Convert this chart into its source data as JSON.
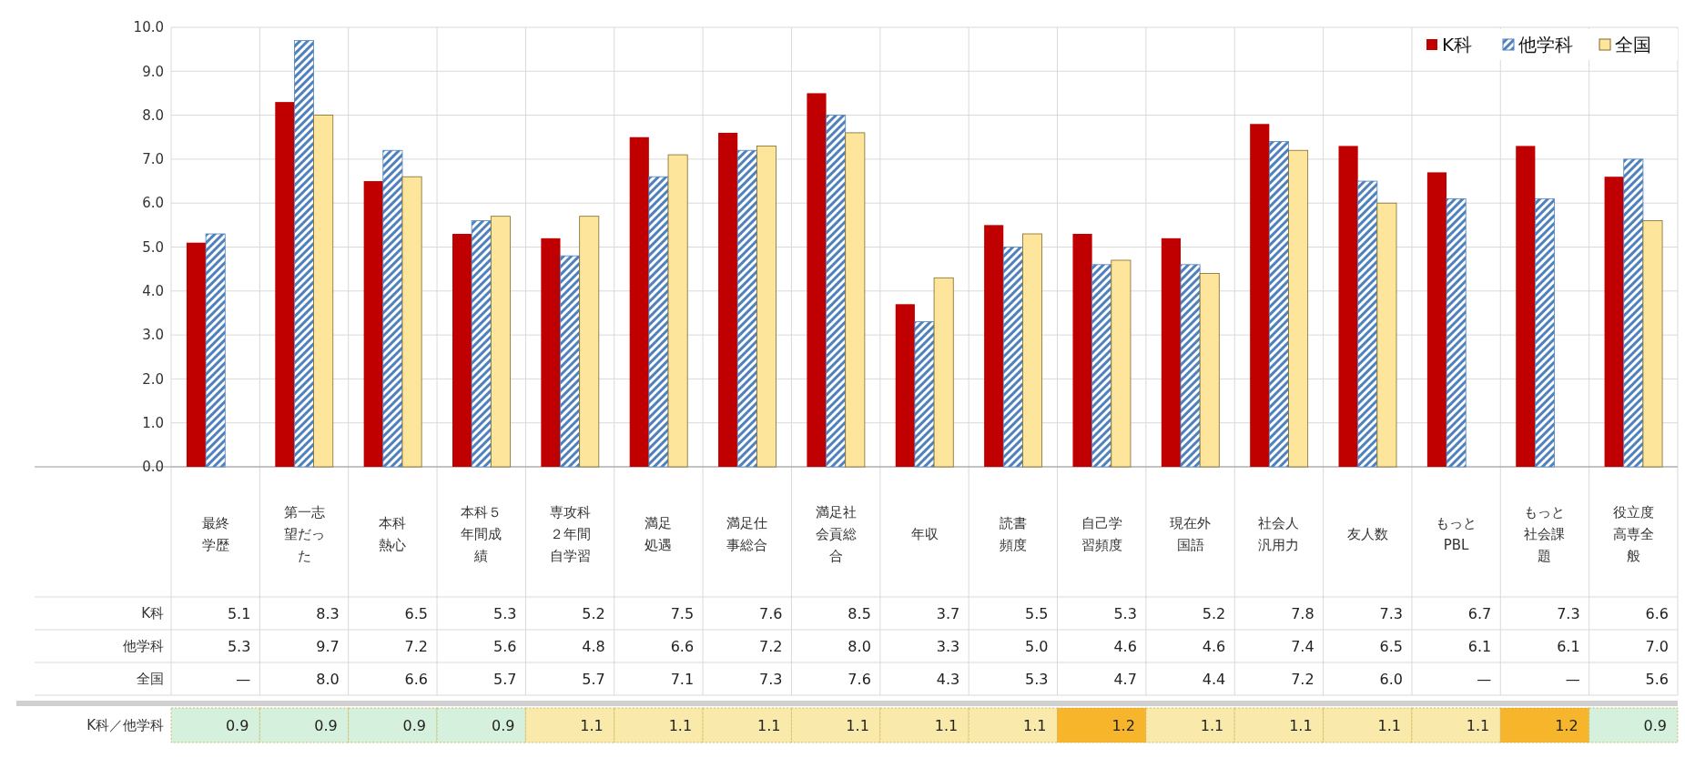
{
  "chart_data": [
    {
      "type": "bar",
      "categories": [
        "最終学歴",
        "第一志望だった",
        "本科熱心",
        "本科５年間成績",
        "専攻科２年間自学習",
        "満足処遇",
        "満足仕事総合",
        "満足社会貢総合",
        "年収",
        "読書頻度",
        "自己学習頻度",
        "現在外国語",
        "社会人汎用力",
        "友人数",
        "もっとPBL",
        "もっと社会課題",
        "役立度高専全般"
      ],
      "series": [
        {
          "name": "K科",
          "color": "#c00000",
          "values": [
            5.1,
            8.3,
            6.5,
            5.3,
            5.2,
            7.5,
            7.6,
            8.5,
            3.7,
            5.5,
            5.3,
            5.2,
            7.8,
            7.3,
            6.7,
            7.3,
            6.6
          ],
          "value_labels": [
            "5.1",
            "8.3",
            "6.5",
            "5.3",
            "5.2",
            "7.5",
            "7.6",
            "8.5",
            "3.7",
            "5.5",
            "5.3",
            "5.2",
            "7.8",
            "7.3",
            "6.7",
            "7.3",
            "6.6"
          ]
        },
        {
          "name": "他学科",
          "color": "#4f81bd",
          "values": [
            5.3,
            9.7,
            7.2,
            5.6,
            4.8,
            6.6,
            7.2,
            8.0,
            3.3,
            5.0,
            4.6,
            4.6,
            7.4,
            6.5,
            6.1,
            6.1,
            7.0
          ],
          "value_labels": [
            "5.3",
            "9.7",
            "7.2",
            "5.6",
            "4.8",
            "6.6",
            "7.2",
            "8.0",
            "3.3",
            "5.0",
            "4.6",
            "4.6",
            "7.4",
            "6.5",
            "6.1",
            "6.1",
            "7.0"
          ]
        },
        {
          "name": "全国",
          "color": "#fde59c",
          "values": [
            null,
            8.0,
            6.6,
            5.7,
            5.7,
            7.1,
            7.3,
            7.6,
            4.3,
            5.3,
            4.7,
            4.4,
            7.2,
            6.0,
            null,
            null,
            5.6
          ],
          "value_labels": [
            "—",
            "8.0",
            "6.6",
            "5.7",
            "5.7",
            "7.1",
            "7.3",
            "7.6",
            "4.3",
            "5.3",
            "4.7",
            "4.4",
            "7.2",
            "6.0",
            "—",
            "—",
            "5.6"
          ]
        }
      ],
      "ylim": [
        0,
        10
      ],
      "yticks": [
        {
          "value": 0,
          "label": "0.0"
        },
        {
          "value": 1,
          "label": "1.0"
        },
        {
          "value": 2,
          "label": "2.0"
        },
        {
          "value": 3,
          "label": "3.0"
        },
        {
          "value": 4,
          "label": "4.0"
        },
        {
          "value": 5,
          "label": "5.0"
        },
        {
          "value": 6,
          "label": "6.0"
        },
        {
          "value": 7,
          "label": "7.0"
        },
        {
          "value": 8,
          "label": "8.0"
        },
        {
          "value": 9,
          "label": "9.0"
        },
        {
          "value": 10,
          "label": "10.0"
        }
      ],
      "grid": "y",
      "legend": "top right"
    },
    {
      "type": "heatmap",
      "categories": [
        null,
        null,
        null,
        null,
        null,
        null,
        null,
        null,
        null,
        null,
        null,
        null,
        null,
        null,
        null,
        null,
        null
      ],
      "y_categories": [
        "K科／他学科"
      ],
      "cells": [
        [
          0.9,
          0.9,
          0.9,
          0.9,
          1.1,
          1.1,
          1.1,
          1.1,
          1.1,
          1.1,
          1.2,
          1.1,
          1.1,
          1.1,
          1.1,
          1.2,
          0.9
        ]
      ],
      "data_labels": true
    }
  ]
}
